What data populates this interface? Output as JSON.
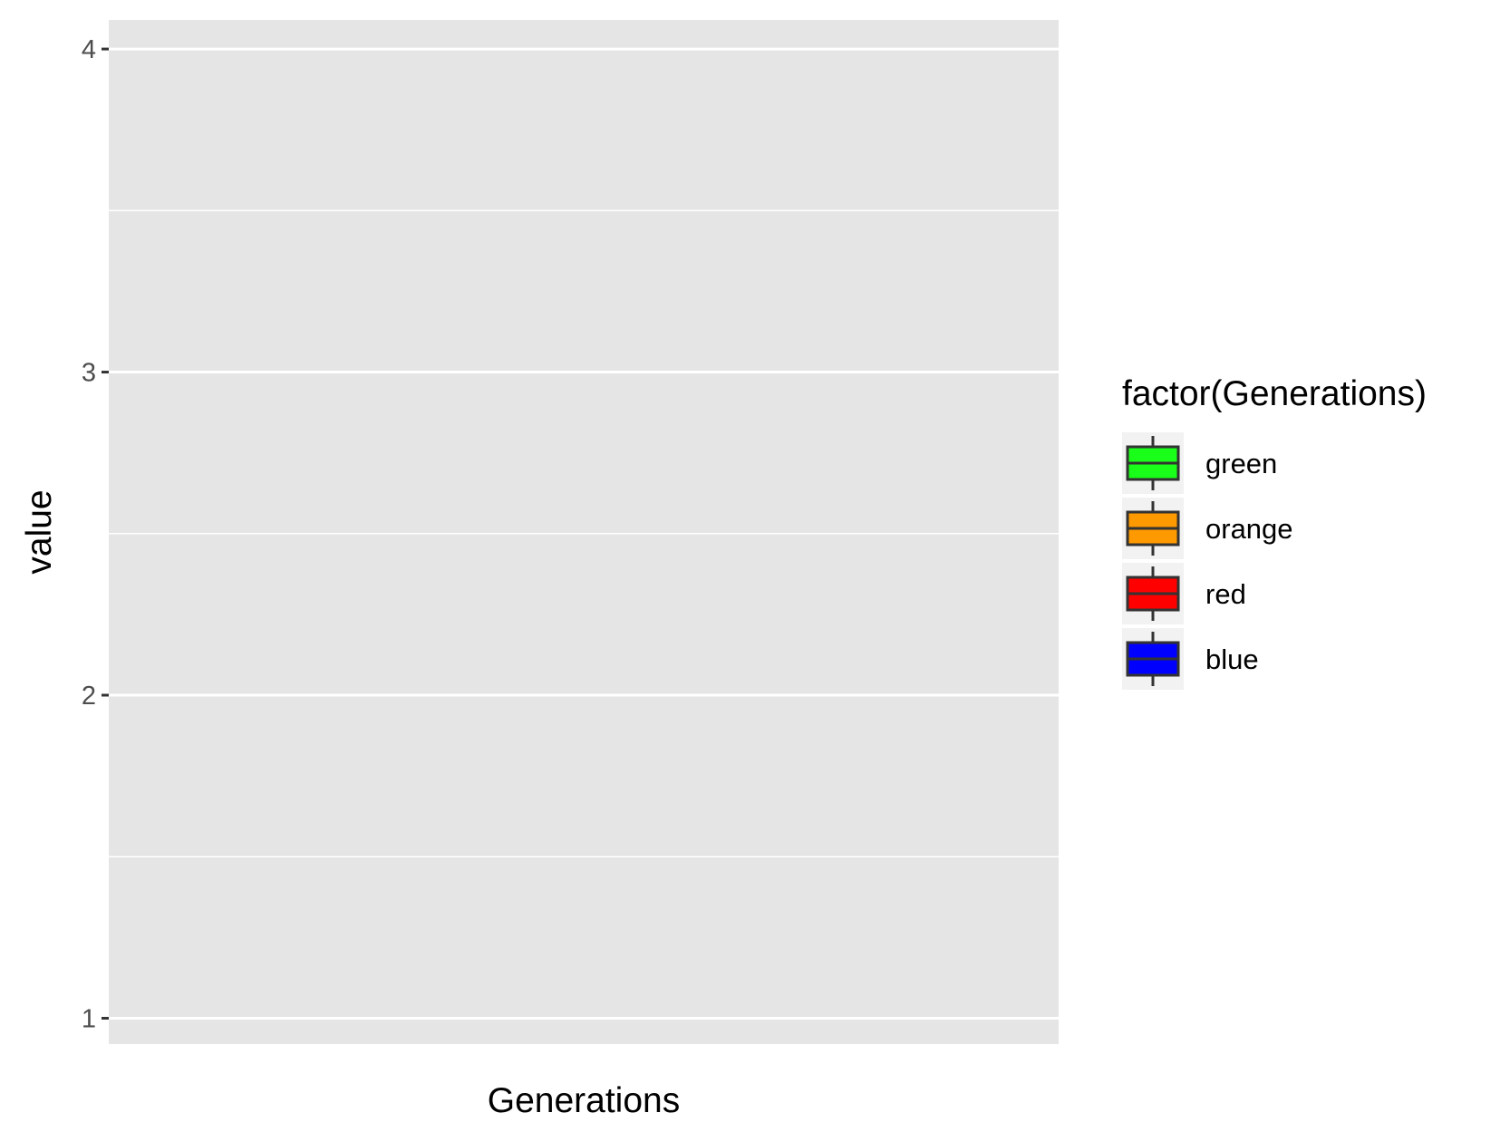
{
  "chart_data": {
    "type": "box",
    "xlabel": "Generations",
    "ylabel": "value",
    "ylim": [
      0.92,
      4.09
    ],
    "y_ticks": [
      {
        "value": 1,
        "label": "1"
      },
      {
        "value": 2,
        "label": "2"
      },
      {
        "value": 3,
        "label": "3"
      },
      {
        "value": 4,
        "label": "4"
      }
    ],
    "y_minor_ticks": [
      1.5,
      2.5,
      3.5
    ],
    "grid": true,
    "panel_background": "#e5e5e5",
    "grid_color": "#ffffff",
    "legend": {
      "title": "factor(Generations)",
      "position": "right",
      "items": [
        {
          "label": "green",
          "color": "#1aff1a"
        },
        {
          "label": "orange",
          "color": "#ff9900"
        },
        {
          "label": "red",
          "color": "#ff0000"
        },
        {
          "label": "blue",
          "color": "#0000ff"
        }
      ]
    },
    "series": []
  }
}
